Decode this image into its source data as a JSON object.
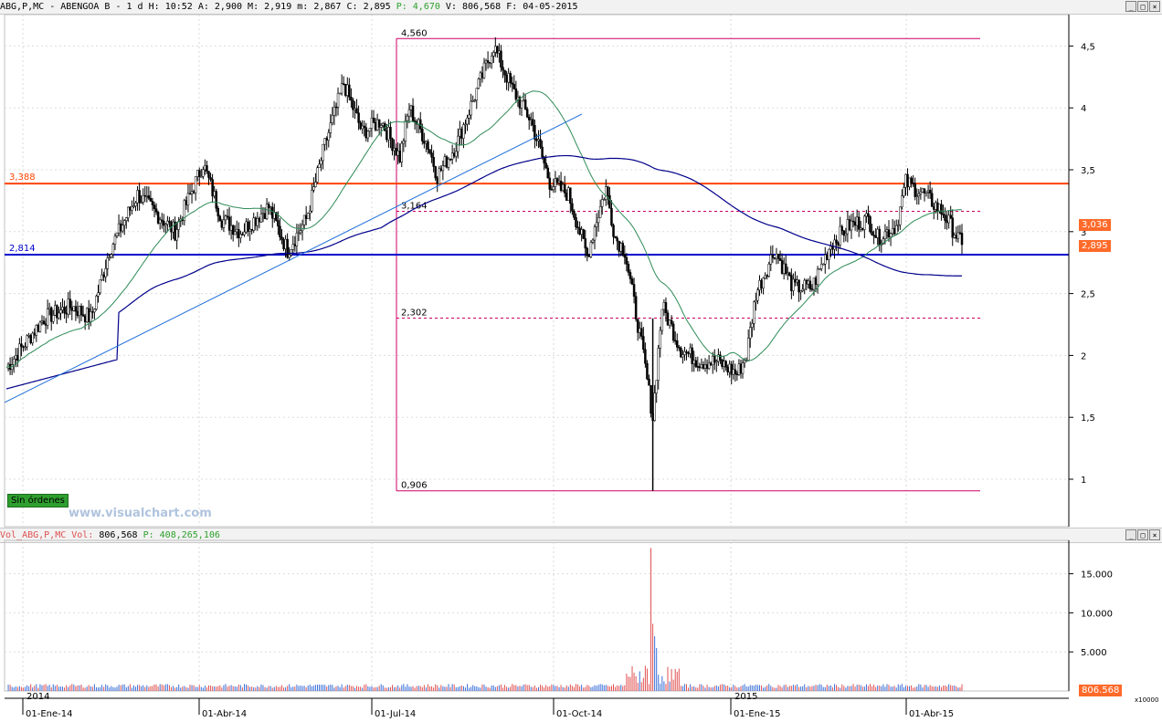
{
  "header": {
    "symbol": "ABG,P,MC",
    "name": "ABENGOA B",
    "period": "1 d",
    "h_label": "H:",
    "h_value": "10:52",
    "a_label": "A:",
    "a_value": "2,900",
    "m_label": "M:",
    "m_value": "2,919",
    "mn_label": "m:",
    "mn_value": "2,867",
    "c_label": "C:",
    "c_value": "2,895",
    "p_label": "P:",
    "p_value": "4,670",
    "v_label": "V:",
    "v_value": "806,568",
    "f_label": "F:",
    "f_value": "04-05-2015"
  },
  "vol_header": {
    "title": "Vol_ABG,P,MC Vol:",
    "vol_value": "806,568",
    "p_label": "P:",
    "p_value": "408,265,106"
  },
  "window_buttons": [
    "_",
    "□",
    "×"
  ],
  "status_badge": "Sin órdenes",
  "watermark": "www.visualchart.com",
  "colors": {
    "up": "#000000",
    "ma_green": "#2e8b57",
    "ma_blue": "#00008b",
    "resistance": "#ff4500",
    "support": "#0000cd",
    "fib": "#cc0066",
    "vol_up": "#3a6fd8",
    "vol_down": "#e05050",
    "badge_orange": "#ff6a2a"
  },
  "chart_data": {
    "type": "candlestick",
    "price_axis": {
      "ticks": [
        "4,5",
        "4",
        "3,5",
        "3",
        "2,5",
        "2",
        "1,5",
        "1"
      ],
      "tick_values": [
        4.5,
        4,
        3.5,
        3,
        2.5,
        2,
        1.5,
        1
      ]
    },
    "volume_axis": {
      "ticks": [
        "15.000",
        "10.000",
        "5.000"
      ],
      "tick_values": [
        15000,
        10000,
        5000
      ],
      "unit": "x10000"
    },
    "x_labels": [
      "01-Ene-14",
      "01-Abr-14",
      "01-Jul-14",
      "01-Oct-14",
      "01-Ene-15",
      "01-Abr-15"
    ],
    "year_labels": [
      "2014",
      "2015"
    ],
    "horizontal_levels": [
      {
        "label": "3,388",
        "value": 3.388,
        "color": "resistance"
      },
      {
        "label": "2,814",
        "value": 2.814,
        "color": "support"
      }
    ],
    "fibonacci": [
      {
        "label": "4,560",
        "value": 4.56
      },
      {
        "label": "3,164",
        "value": 3.164
      },
      {
        "label": "2,302",
        "value": 2.302
      },
      {
        "label": "0,906",
        "value": 0.906
      }
    ],
    "price_badges": [
      {
        "label": "3,036",
        "value": 3.036
      },
      {
        "label": "2,895",
        "value": 2.895
      }
    ],
    "volume_badge": {
      "label": "806.568",
      "value": 806.568
    },
    "close_anchors": [
      [
        0,
        1.9
      ],
      [
        20,
        2.3
      ],
      [
        35,
        2.4
      ],
      [
        45,
        2.3
      ],
      [
        55,
        2.85
      ],
      [
        70,
        3.3
      ],
      [
        90,
        3.0
      ],
      [
        105,
        3.55
      ],
      [
        115,
        3.1
      ],
      [
        125,
        3.0
      ],
      [
        140,
        3.2
      ],
      [
        150,
        2.85
      ],
      [
        160,
        3.1
      ],
      [
        170,
        3.7
      ],
      [
        180,
        4.2
      ],
      [
        190,
        3.8
      ],
      [
        200,
        3.9
      ],
      [
        210,
        3.6
      ],
      [
        215,
        4.0
      ],
      [
        225,
        3.7
      ],
      [
        230,
        3.45
      ],
      [
        240,
        3.7
      ],
      [
        250,
        4.1
      ],
      [
        260,
        4.5
      ],
      [
        270,
        4.15
      ],
      [
        280,
        3.9
      ],
      [
        290,
        3.4
      ],
      [
        300,
        3.3
      ],
      [
        310,
        2.8
      ],
      [
        315,
        3.1
      ],
      [
        320,
        3.35
      ],
      [
        325,
        2.95
      ],
      [
        330,
        2.85
      ],
      [
        340,
        2.0
      ],
      [
        345,
        1.5
      ],
      [
        350,
        2.4
      ],
      [
        360,
        2.05
      ],
      [
        370,
        1.95
      ],
      [
        380,
        1.95
      ],
      [
        390,
        1.85
      ],
      [
        395,
        2.0
      ],
      [
        400,
        2.5
      ],
      [
        410,
        2.85
      ],
      [
        420,
        2.55
      ],
      [
        430,
        2.55
      ],
      [
        440,
        2.9
      ],
      [
        450,
        3.05
      ],
      [
        460,
        3.1
      ],
      [
        465,
        2.95
      ],
      [
        475,
        3.05
      ],
      [
        480,
        3.4
      ],
      [
        490,
        3.3
      ],
      [
        500,
        3.15
      ],
      [
        510,
        2.895
      ]
    ]
  }
}
